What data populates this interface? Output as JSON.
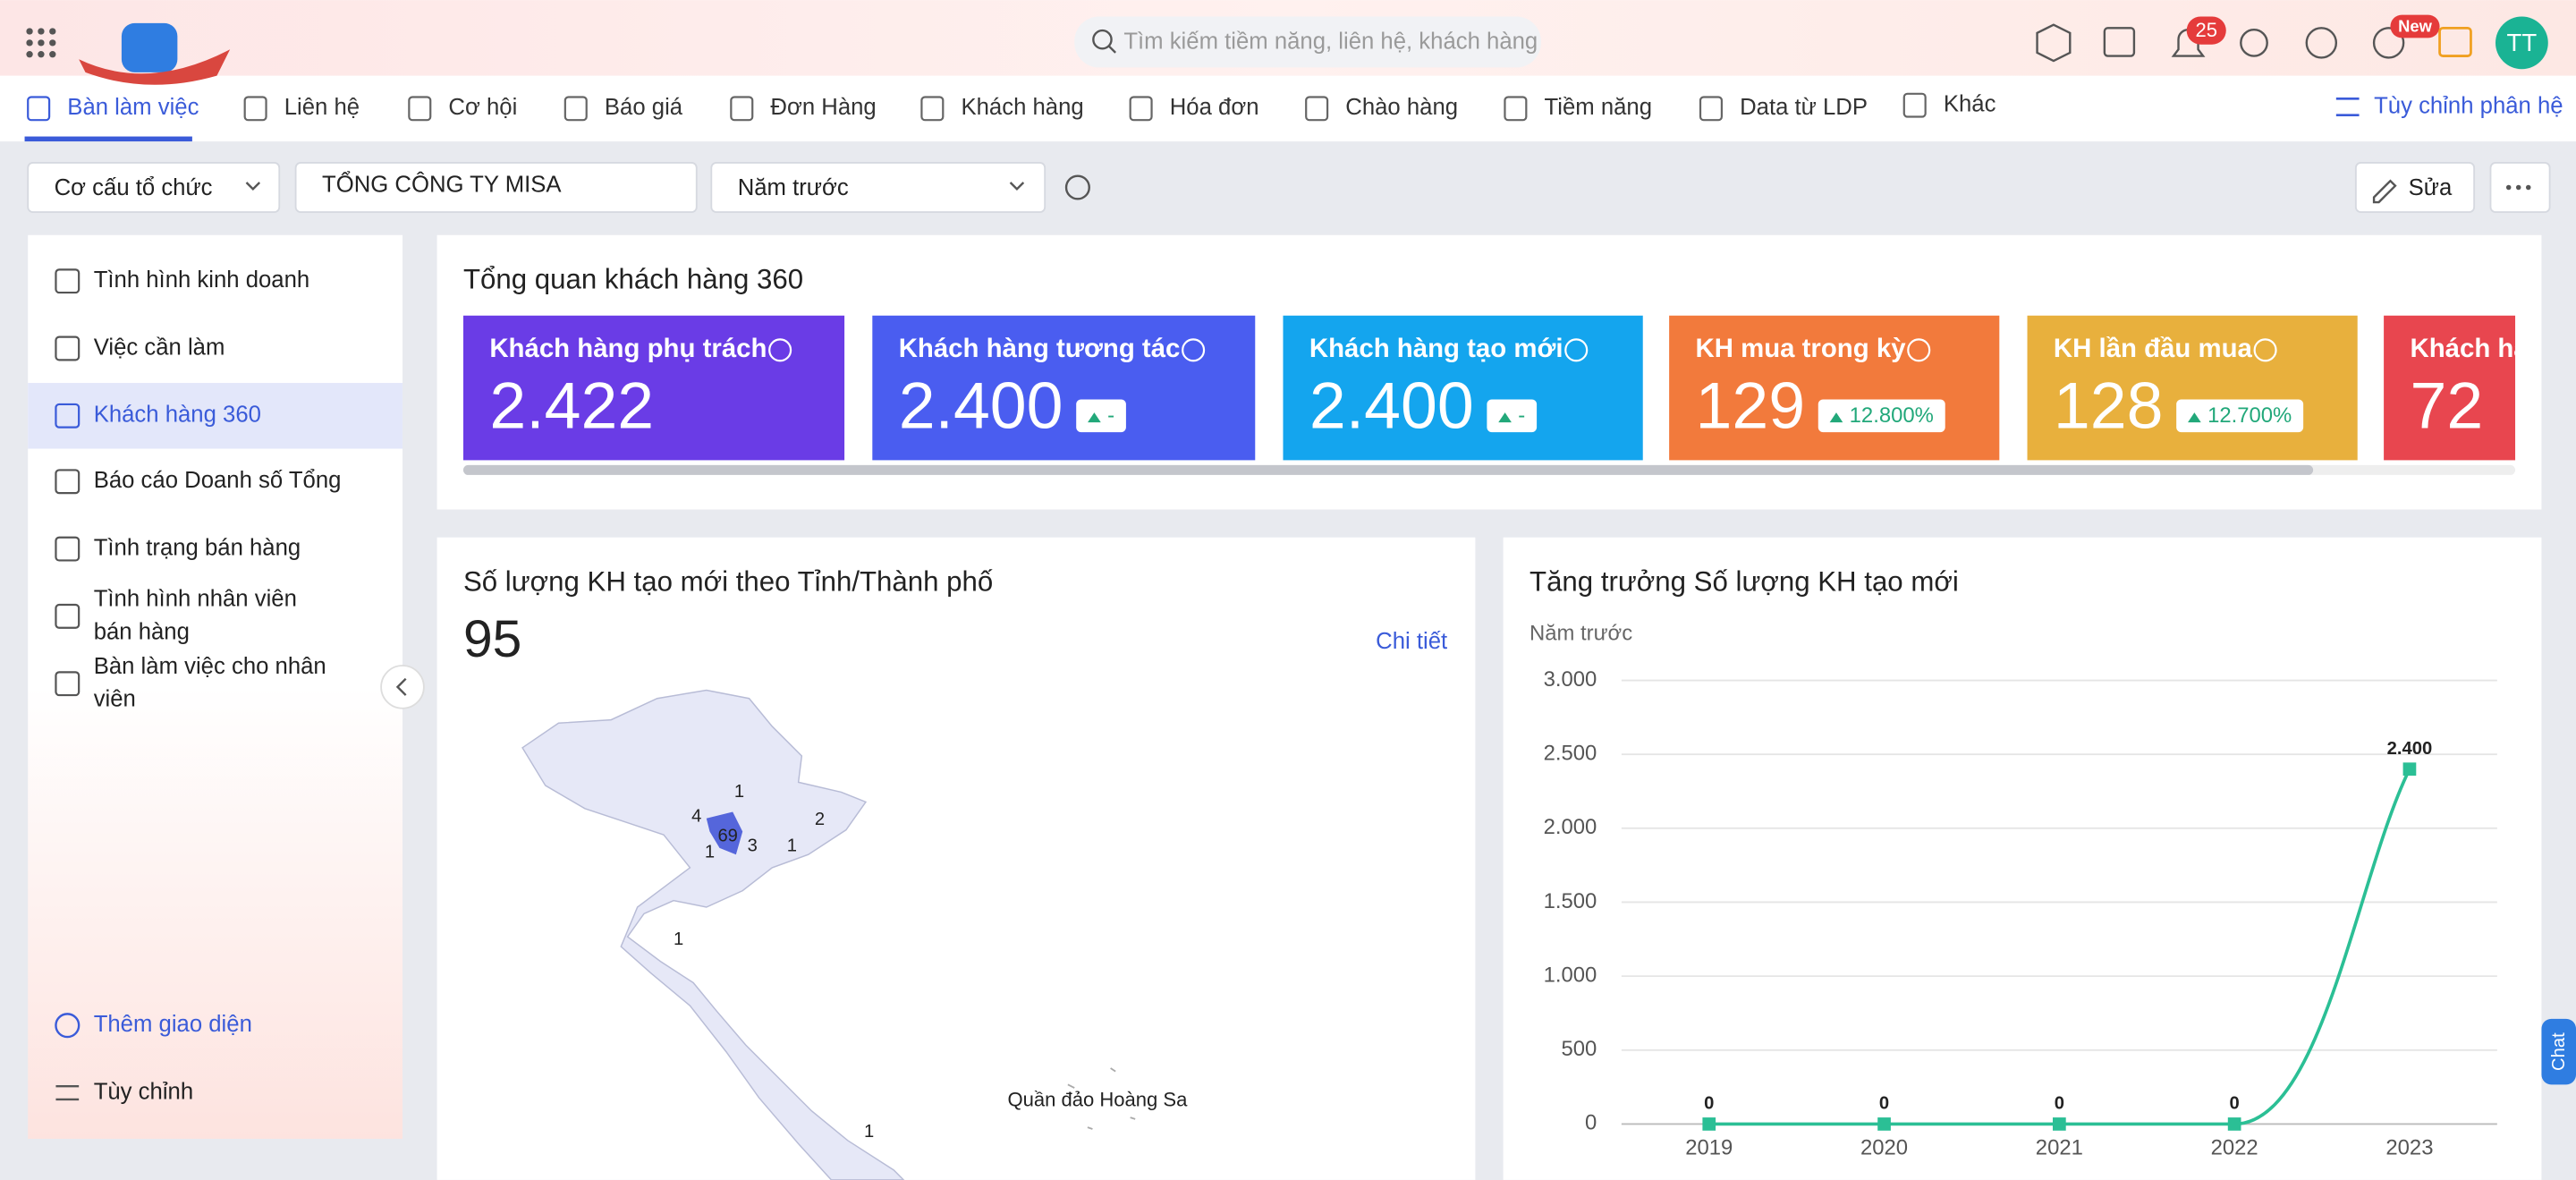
{
  "header": {
    "search_placeholder": "Tìm kiếm tiềm năng, liên hệ, khách hàng",
    "notification_count": "25",
    "new_badge": "New",
    "avatar": "TT"
  },
  "nav": {
    "tabs": [
      "Bàn làm việc",
      "Liên hệ",
      "Cơ hội",
      "Báo giá",
      "Đơn Hàng",
      "Khách hàng",
      "Hóa đơn",
      "Chào hàng",
      "Tiềm năng",
      "Data từ LDP",
      "Khác"
    ],
    "customize": "Tùy chỉnh phân hệ"
  },
  "toolbar": {
    "org_structure": "Cơ cấu tổ chức",
    "company": "TỔNG CÔNG TY MISA",
    "period": "Năm trước",
    "edit": "Sửa"
  },
  "sidebar": {
    "items": [
      "Tình hình kinh doanh",
      "Việc cần làm",
      "Khách hàng 360",
      "Báo cáo Doanh số Tổng",
      "Tình trạng bán hàng",
      "Tình hình nhân viên bán hàng",
      "Bàn làm việc cho nhân viên"
    ],
    "add_layout": "Thêm giao diện",
    "customize": "Tùy chỉnh"
  },
  "overview": {
    "title": "Tổng quan khách hàng 360",
    "cards": [
      {
        "title": "Khách hàng phụ trách",
        "value": "2.422"
      },
      {
        "title": "Khách hàng tương tác",
        "value": "2.400",
        "change": "-"
      },
      {
        "title": "Khách hàng tạo mới",
        "value": "2.400",
        "change": "-"
      },
      {
        "title": "KH mua trong kỳ",
        "value": "129",
        "change": "12.800%"
      },
      {
        "title": "KH lần đầu mua",
        "value": "128",
        "change": "12.700%"
      },
      {
        "title": "Khách hà",
        "value": "72"
      }
    ]
  },
  "map": {
    "title": "Số lượng KH tạo mới theo Tỉnh/Thành phố",
    "total": "95",
    "detail": "Chi tiết",
    "labels": [
      "1",
      "4",
      "69",
      "1",
      "3",
      "1",
      "2",
      "1",
      "1"
    ],
    "island_label": "Quần đảo Hoàng Sa"
  },
  "chat": "Chat",
  "chart_data": {
    "type": "line",
    "title": "Tăng trưởng Số lượng KH tạo mới",
    "subtitle": "Năm trước",
    "categories": [
      "2019",
      "2020",
      "2021",
      "2022",
      "2023"
    ],
    "values": [
      0,
      0,
      0,
      0,
      2400
    ],
    "value_labels": [
      "0",
      "0",
      "0",
      "0",
      "2.400"
    ],
    "color": "#2bbf95",
    "ylim": [
      0,
      3000
    ],
    "yticks": [
      0,
      500,
      {
        "value": 1000,
        "label": "1.000"
      },
      {
        "value": 1500,
        "label": "1.500"
      },
      {
        "value": 2000,
        "label": "2.000"
      },
      {
        "value": 2500,
        "label": "2.500"
      },
      {
        "value": 3000,
        "label": "3.000"
      }
    ],
    "grid": true
  }
}
